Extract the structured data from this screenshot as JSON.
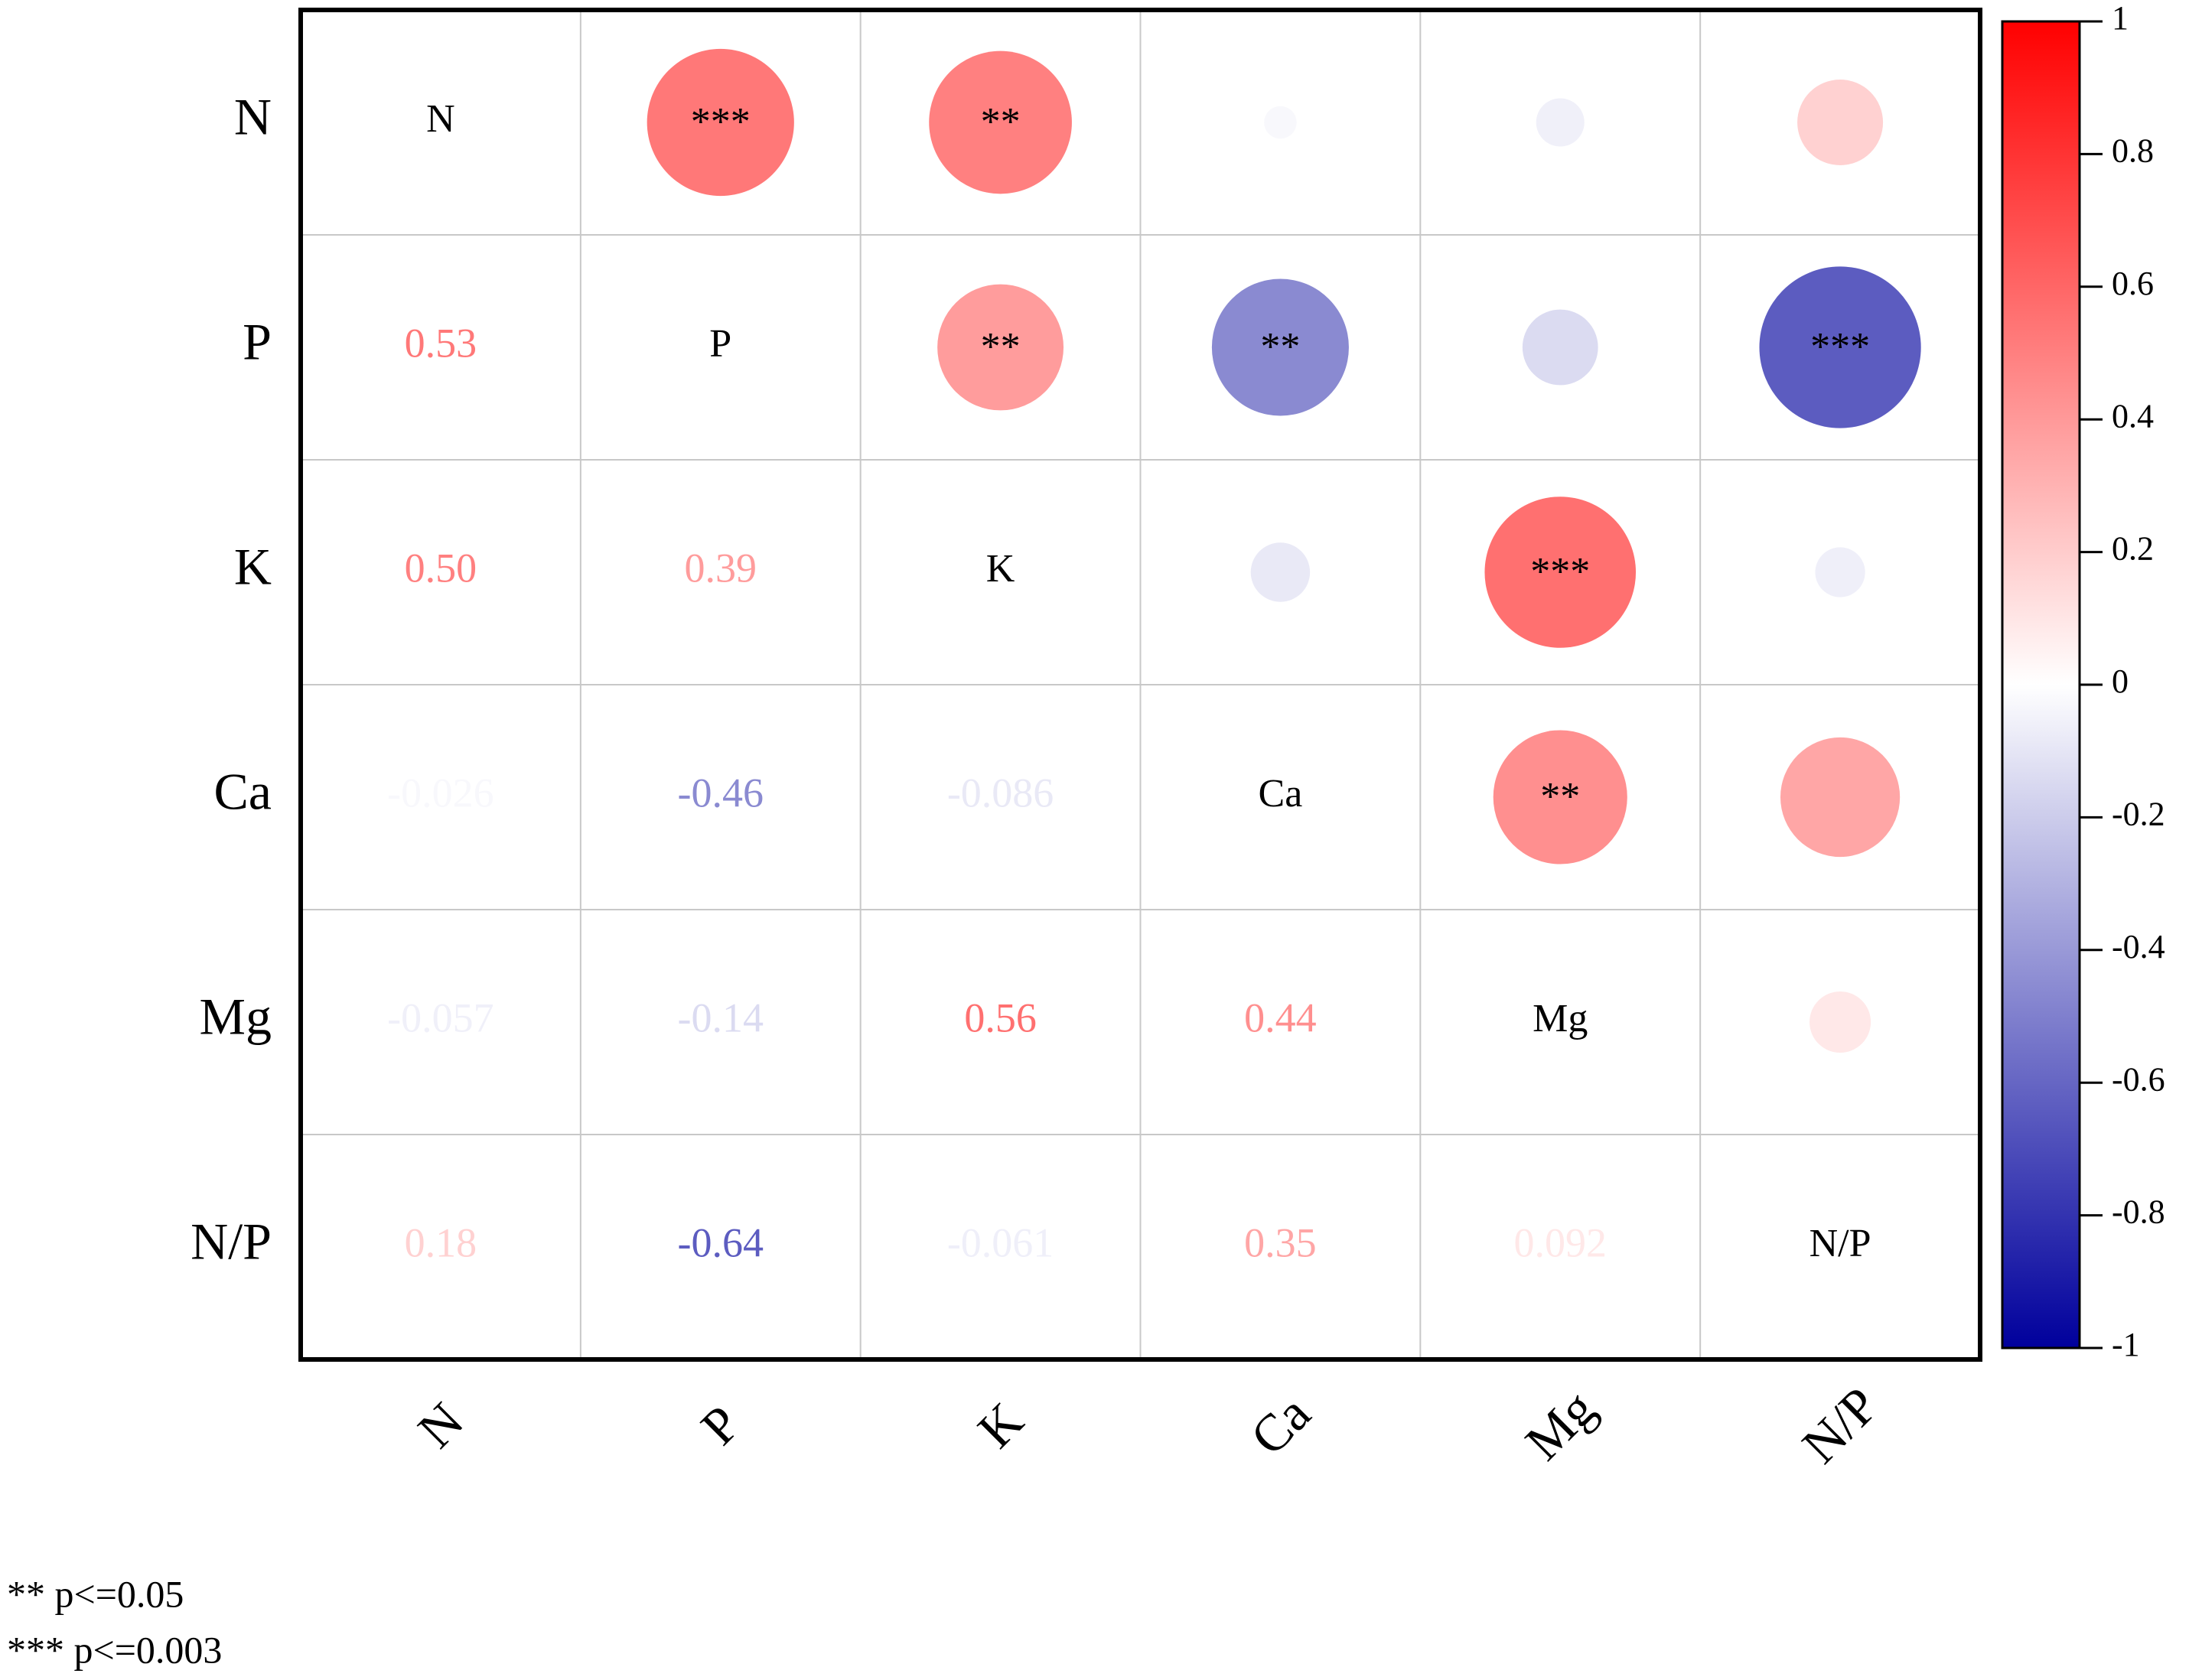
{
  "chart_data": {
    "type": "correlation",
    "variables": [
      "N",
      "P",
      "K",
      "Ca",
      "Mg",
      "N/P"
    ],
    "values": [
      [],
      [
        0.53
      ],
      [
        0.5,
        0.39
      ],
      [
        -0.026,
        -0.46,
        -0.086
      ],
      [
        -0.057,
        -0.14,
        0.56,
        0.44
      ],
      [
        0.18,
        -0.64,
        -0.061,
        0.35,
        0.092
      ]
    ],
    "value_labels": [
      [],
      [
        "0.53"
      ],
      [
        "0.50",
        "0.39"
      ],
      [
        "-0.026",
        "-0.46",
        "-0.086"
      ],
      [
        "-0.057",
        "-0.14",
        "0.56",
        "0.44"
      ],
      [
        "0.18",
        "-0.64",
        "-0.061",
        "0.35",
        "0.092"
      ]
    ],
    "stars": [
      [],
      [
        "***"
      ],
      [
        "**",
        "**"
      ],
      [
        null,
        "**",
        null
      ],
      [
        null,
        null,
        "***",
        "**"
      ],
      [
        null,
        "***",
        null,
        null,
        null
      ]
    ],
    "colors": [
      "#00009c",
      "#ffffff",
      "#ff0000"
    ],
    "clim": [
      -1,
      1
    ],
    "cticks": [
      -1,
      -0.8,
      -0.6,
      -0.4,
      -0.2,
      0,
      0.2,
      0.4,
      0.6,
      0.8,
      1
    ],
    "notes": [
      "** p<=0.05",
      "*** p<=0.003"
    ]
  }
}
